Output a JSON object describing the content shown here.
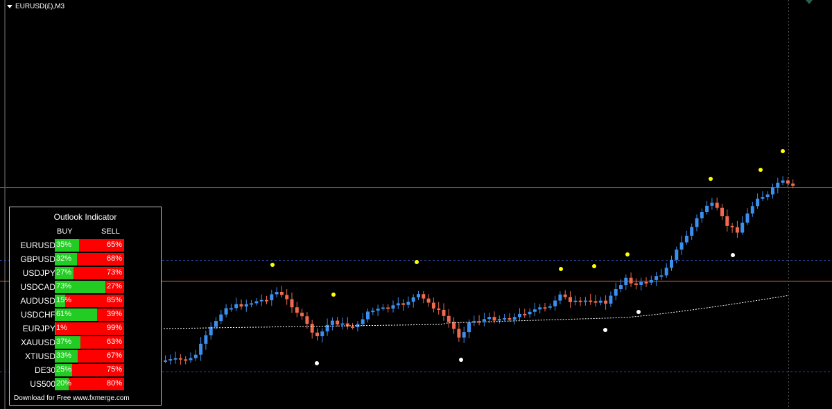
{
  "chart": {
    "symbol_label": "EURUSD(£),M3",
    "colors": {
      "bull": "#3d8fef",
      "bear": "#ef6a4f",
      "up_signal": "#ffff00",
      "down_signal": "#ffffff",
      "price_line": "#e8704e",
      "bid_line": "#2f6b55",
      "level_line": "#2e4fb0"
    },
    "icons": [
      "symbol-menu-triangle-icon",
      "chart-shift-marker-icon"
    ]
  },
  "panel": {
    "title": "Outlook Indicator",
    "buy_header": "BUY",
    "sell_header": "SELL",
    "rows": [
      {
        "symbol": "EURUSD",
        "buy": "35%",
        "sell": "65%",
        "buy_fraction": 0.35
      },
      {
        "symbol": "GBPUSD",
        "buy": "32%",
        "sell": "68%",
        "buy_fraction": 0.32
      },
      {
        "symbol": "USDJPY",
        "buy": "27%",
        "sell": "73%",
        "buy_fraction": 0.27
      },
      {
        "symbol": "USDCAD",
        "buy": "73%",
        "sell": "27%",
        "buy_fraction": 0.73
      },
      {
        "symbol": "AUDUSD",
        "buy": "15%",
        "sell": "85%",
        "buy_fraction": 0.15
      },
      {
        "symbol": "USDCHF",
        "buy": "61%",
        "sell": "39%",
        "buy_fraction": 0.61
      },
      {
        "symbol": "EURJPY",
        "buy": "1%",
        "sell": "99%",
        "buy_fraction": 0.01
      },
      {
        "symbol": "XAUUSD",
        "buy": "37%",
        "sell": "63%",
        "buy_fraction": 0.37
      },
      {
        "symbol": "XTIUSD",
        "buy": "33%",
        "sell": "67%",
        "buy_fraction": 0.33
      },
      {
        "symbol": "DE30",
        "buy": "25%",
        "sell": "75%",
        "buy_fraction": 0.25
      },
      {
        "symbol": "US500",
        "buy": "20%",
        "sell": "80%",
        "buy_fraction": 0.2
      }
    ],
    "footer": "Download for Free www.fxmerge.com"
  }
}
